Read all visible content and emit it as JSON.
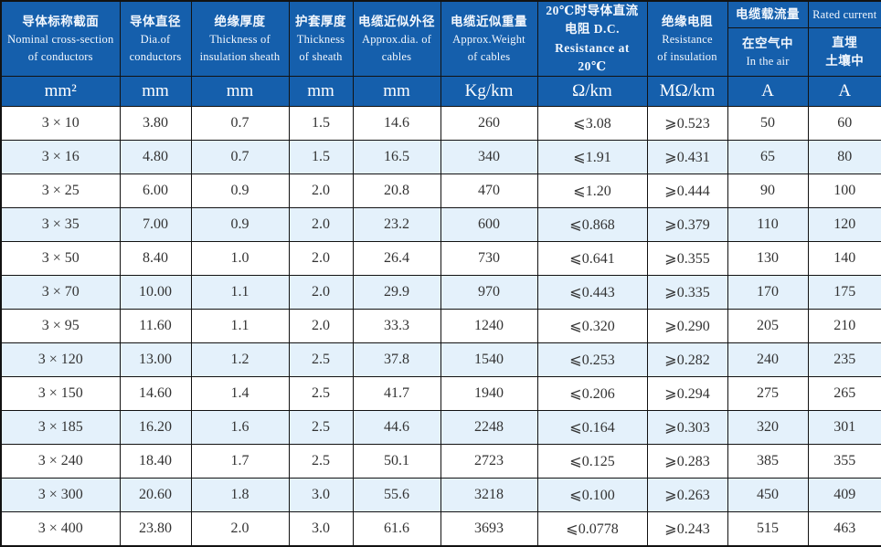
{
  "colors": {
    "header_bg": "#155fac",
    "stripe_bg": "#e4f1fb",
    "border": "#121212",
    "header_text": "#f2f7fd",
    "body_text": "#333333"
  },
  "table": {
    "columns": [
      {
        "lines": [
          "导体标称截面",
          "Nominal cross-section",
          "of conductors"
        ],
        "unit": "mm²"
      },
      {
        "lines": [
          "导体直径",
          "Dia.of",
          "conductors"
        ],
        "unit": "mm"
      },
      {
        "lines": [
          "绝缘厚度",
          "Thickness of",
          "insulation sheath"
        ],
        "unit": "mm"
      },
      {
        "lines": [
          "护套厚度",
          "Thickness",
          "of sheath"
        ],
        "unit": "mm"
      },
      {
        "lines": [
          "电缆近似外径",
          "Approx.dia. of",
          "cables"
        ],
        "unit": "mm"
      },
      {
        "lines": [
          "电缆近似重量",
          "Approx.Weight",
          "of cables"
        ],
        "unit": "Kg/km"
      },
      {
        "lines": [
          "20℃时导体直流",
          "电阻 D.C.",
          "Resistance at 20℃"
        ],
        "unit": "Ω/km"
      },
      {
        "lines": [
          "绝缘电阻",
          "Resistance",
          "of insulation"
        ],
        "unit": "MΩ/km"
      },
      {
        "group": "电缆载流量",
        "lines": [
          "在空气中",
          "In the air"
        ],
        "unit": "A"
      },
      {
        "group": "Rated current",
        "lines": [
          "直埋",
          "土壤中"
        ],
        "unit": "A"
      }
    ],
    "rows": [
      [
        "3 × 10",
        "3.80",
        "0.7",
        "1.5",
        "14.6",
        "260",
        "⩽3.08",
        "⩾0.523",
        "50",
        "60"
      ],
      [
        "3 × 16",
        "4.80",
        "0.7",
        "1.5",
        "16.5",
        "340",
        "⩽1.91",
        "⩾0.431",
        "65",
        "80"
      ],
      [
        "3 × 25",
        "6.00",
        "0.9",
        "2.0",
        "20.8",
        "470",
        "⩽1.20",
        "⩾0.444",
        "90",
        "100"
      ],
      [
        "3 × 35",
        "7.00",
        "0.9",
        "2.0",
        "23.2",
        "600",
        "⩽0.868",
        "⩾0.379",
        "110",
        "120"
      ],
      [
        "3 × 50",
        "8.40",
        "1.0",
        "2.0",
        "26.4",
        "730",
        "⩽0.641",
        "⩾0.355",
        "130",
        "140"
      ],
      [
        "3 × 70",
        "10.00",
        "1.1",
        "2.0",
        "29.9",
        "970",
        "⩽0.443",
        "⩾0.335",
        "170",
        "175"
      ],
      [
        "3 × 95",
        "11.60",
        "1.1",
        "2.0",
        "33.3",
        "1240",
        "⩽0.320",
        "⩾0.290",
        "205",
        "210"
      ],
      [
        "3 × 120",
        "13.00",
        "1.2",
        "2.5",
        "37.8",
        "1540",
        "⩽0.253",
        "⩾0.282",
        "240",
        "235"
      ],
      [
        "3 × 150",
        "14.60",
        "1.4",
        "2.5",
        "41.7",
        "1940",
        "⩽0.206",
        "⩾0.294",
        "275",
        "265"
      ],
      [
        "3 × 185",
        "16.20",
        "1.6",
        "2.5",
        "44.6",
        "2248",
        "⩽0.164",
        "⩾0.303",
        "320",
        "301"
      ],
      [
        "3 × 240",
        "18.40",
        "1.7",
        "2.5",
        "50.1",
        "2723",
        "⩽0.125",
        "⩾0.283",
        "385",
        "355"
      ],
      [
        "3 × 300",
        "20.60",
        "1.8",
        "3.0",
        "55.6",
        "3218",
        "⩽0.100",
        "⩾0.263",
        "450",
        "409"
      ],
      [
        "3 × 400",
        "23.80",
        "2.0",
        "3.0",
        "61.6",
        "3693",
        "⩽0.0778",
        "⩾0.243",
        "515",
        "463"
      ]
    ]
  }
}
